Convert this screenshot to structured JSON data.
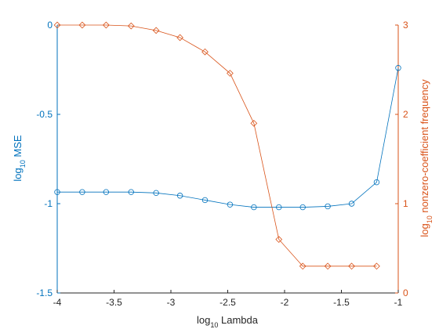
{
  "chart_data": {
    "type": "line",
    "xlabel": "log10 Lambda",
    "xlabel_base": "log",
    "xlabel_sub": "10",
    "xlabel_rest": " Lambda",
    "ylabel_left_base": "log",
    "ylabel_left_sub": "10",
    "ylabel_left_rest": " MSE",
    "ylabel_right_base": "log",
    "ylabel_right_sub": "10",
    "ylabel_right_rest": " nonzero-coefficient frequency",
    "xlim": [
      -4,
      -1
    ],
    "ylim_left": [
      -1.5,
      0
    ],
    "ylim_right": [
      0,
      3
    ],
    "xticks": [
      "-4",
      "-3.5",
      "-3",
      "-2.5",
      "-2",
      "-1.5",
      "-1"
    ],
    "xtick_values": [
      -4,
      -3.5,
      -3,
      -2.5,
      -2,
      -1.5,
      -1
    ],
    "yticks_left": [
      "0",
      "-0.5",
      "-1",
      "-1.5"
    ],
    "ytick_left_values": [
      0,
      -0.5,
      -1,
      -1.5
    ],
    "yticks_right": [
      "3",
      "2",
      "1",
      "0"
    ],
    "ytick_right_values": [
      3,
      2,
      1,
      0
    ],
    "grid": false,
    "colors": {
      "left": "#0072bd",
      "right": "#d95319",
      "axes": "#262626"
    },
    "x": [
      -4.0,
      -3.78,
      -3.57,
      -3.35,
      -3.13,
      -2.92,
      -2.7,
      -2.48,
      -2.27,
      -2.05,
      -1.84,
      -1.62,
      -1.41,
      -1.19,
      -1.0
    ],
    "series": [
      {
        "axis": "left",
        "marker": "circle",
        "values": [
          -0.935,
          -0.935,
          -0.935,
          -0.935,
          -0.94,
          -0.955,
          -0.98,
          -1.005,
          -1.02,
          -1.02,
          -1.02,
          -1.015,
          -1.0,
          -0.88,
          -0.24
        ]
      },
      {
        "axis": "right",
        "marker": "diamond",
        "x": [
          -4.0,
          -3.78,
          -3.57,
          -3.35,
          -3.13,
          -2.92,
          -2.7,
          -2.48,
          -2.27,
          -2.05,
          -1.84,
          -1.62,
          -1.41,
          -1.19
        ],
        "values": [
          3.0,
          3.0,
          3.0,
          2.99,
          2.94,
          2.86,
          2.7,
          2.46,
          1.9,
          0.6,
          0.3,
          0.3,
          0.3,
          0.3
        ]
      }
    ]
  }
}
